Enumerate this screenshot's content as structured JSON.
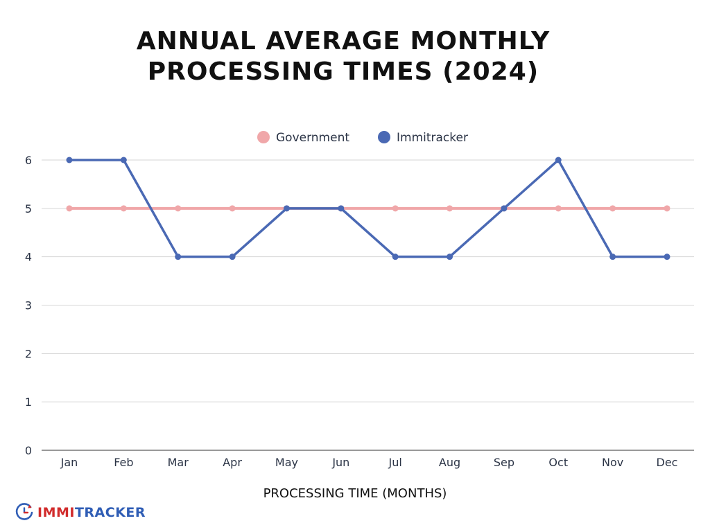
{
  "chart_data": {
    "type": "line",
    "title_lines": [
      "ANNUAL AVERAGE MONTHLY",
      "PROCESSING TIMES (2024)"
    ],
    "xlabel": "PROCESSING TIME (MONTHS)",
    "ylabel": "",
    "categories": [
      "Jan",
      "Feb",
      "Mar",
      "Apr",
      "May",
      "Jun",
      "Jul",
      "Aug",
      "Sep",
      "Oct",
      "Nov",
      "Dec"
    ],
    "ylim": [
      0,
      6
    ],
    "yticks": [
      "0",
      "1",
      "2",
      "3",
      "4",
      "5",
      "6"
    ],
    "grid": true,
    "legend_position": "top-center",
    "series": [
      {
        "name": "Government",
        "color": "#f0a7a9",
        "values": [
          5,
          5,
          5,
          5,
          5,
          5,
          5,
          5,
          5,
          5,
          5,
          5
        ]
      },
      {
        "name": "Immitracker",
        "color": "#4a69b4",
        "values": [
          6,
          6,
          4,
          4,
          5,
          5,
          4,
          4,
          5,
          6,
          4,
          4
        ]
      }
    ]
  },
  "logo": {
    "text_part1": "IMMI",
    "text_part2": "TRACKER",
    "icon": "clock-icon",
    "color_red": "#d12b2b",
    "color_blue": "#2f5db5"
  }
}
